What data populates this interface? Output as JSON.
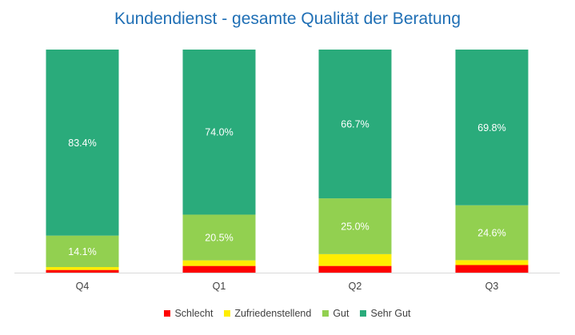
{
  "chart_data": {
    "type": "bar",
    "stacked": true,
    "title": "Kundendienst - gesamte Qualität der Beratung",
    "categories": [
      "Q4",
      "Q1",
      "Q2",
      "Q3"
    ],
    "series": [
      {
        "name": "Schlecht",
        "color": "#ff0000",
        "values": [
          1.2,
          3.0,
          3.0,
          3.4
        ]
      },
      {
        "name": "Zufriedenstellend",
        "color": "#ffee00",
        "values": [
          1.3,
          2.5,
          5.3,
          2.2
        ]
      },
      {
        "name": "Gut",
        "color": "#92d050",
        "values": [
          14.1,
          20.5,
          25.0,
          24.6
        ],
        "labels": [
          "14.1%",
          "20.5%",
          "25.0%",
          "24.6%"
        ]
      },
      {
        "name": "Sehr Gut",
        "color": "#2aab7b",
        "values": [
          83.4,
          74.0,
          66.7,
          69.8
        ],
        "labels": [
          "83.4%",
          "74.0%",
          "66.7%",
          "69.8%"
        ]
      }
    ],
    "ylim": [
      0,
      100
    ],
    "grid": false,
    "legend": "bottom"
  }
}
